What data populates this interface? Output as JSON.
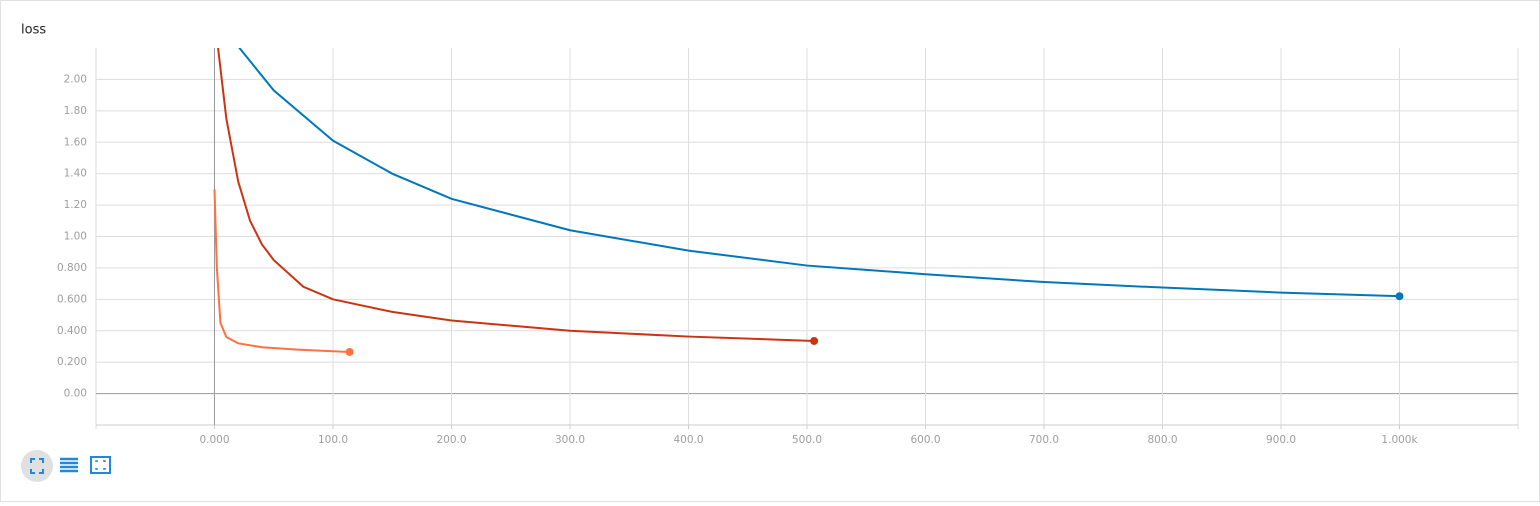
{
  "chart_data": {
    "type": "line",
    "title": "loss",
    "xlim": [
      -100,
      1100
    ],
    "xticks": [
      {
        "value": 0,
        "label": "0.000"
      },
      {
        "value": 100,
        "label": "100.0"
      },
      {
        "value": 200,
        "label": "200.0"
      },
      {
        "value": 300,
        "label": "300.0"
      },
      {
        "value": 400,
        "label": "400.0"
      },
      {
        "value": 500,
        "label": "500.0"
      },
      {
        "value": 600,
        "label": "600.0"
      },
      {
        "value": 700,
        "label": "700.0"
      },
      {
        "value": 800,
        "label": "800.0"
      },
      {
        "value": 900,
        "label": "900.0"
      },
      {
        "value": 1000,
        "label": "1.000k"
      }
    ],
    "ylim": [
      -0.2,
      2.2
    ],
    "yticks": [
      {
        "value": 0,
        "label": "0.00"
      },
      {
        "value": 0.2,
        "label": "0.200"
      },
      {
        "value": 0.4,
        "label": "0.400"
      },
      {
        "value": 0.6,
        "label": "0.600"
      },
      {
        "value": 0.8,
        "label": "0.800"
      },
      {
        "value": 1,
        "label": "1.00"
      },
      {
        "value": 1.2,
        "label": "1.20"
      },
      {
        "value": 1.4,
        "label": "1.40"
      },
      {
        "value": 1.6,
        "label": "1.60"
      },
      {
        "value": 1.8,
        "label": "1.80"
      },
      {
        "value": 2,
        "label": "2.00"
      }
    ],
    "grid": true,
    "series": [
      {
        "color": "#0077bb",
        "x": [
          20,
          50,
          100,
          150,
          200,
          300,
          400,
          500,
          600,
          700,
          800,
          900,
          1000
        ],
        "values": [
          2.21,
          1.93,
          1.61,
          1.4,
          1.24,
          1.04,
          0.91,
          0.815,
          0.76,
          0.71,
          0.675,
          0.643,
          0.62
        ]
      },
      {
        "color": "#cc3311",
        "x": [
          3,
          10,
          20,
          30,
          40,
          50,
          75,
          100,
          150,
          200,
          300,
          400,
          506
        ],
        "values": [
          2.2,
          1.75,
          1.35,
          1.1,
          0.95,
          0.85,
          0.68,
          0.6,
          0.52,
          0.465,
          0.4,
          0.363,
          0.335
        ]
      },
      {
        "color": "#ff7043",
        "x": [
          0,
          2,
          5,
          10,
          20,
          40,
          70,
          114
        ],
        "values": [
          1.3,
          0.8,
          0.45,
          0.36,
          0.32,
          0.295,
          0.28,
          0.265
        ]
      }
    ]
  }
}
